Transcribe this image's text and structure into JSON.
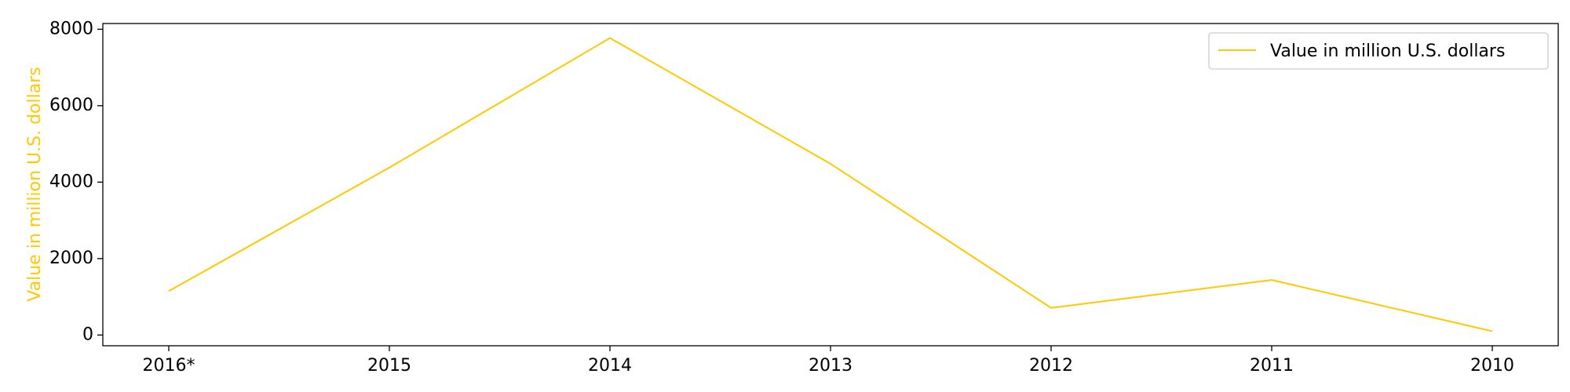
{
  "chart_data": {
    "type": "line",
    "categories": [
      "2016*",
      "2015",
      "2014",
      "2013",
      "2012",
      "2011",
      "2010"
    ],
    "series": [
      {
        "name": "Value in million U.S. dollars",
        "values": [
          1150,
          4380,
          7770,
          4480,
          710,
          1440,
          100
        ],
        "color": "#ffc800"
      }
    ],
    "ylabel": "Value in million U.S. dollars",
    "xlabel": "",
    "ylim": [
      -280,
      8150
    ],
    "yticks": [
      0,
      2000,
      4000,
      6000,
      8000
    ],
    "grid": false,
    "legend_position": "top-right",
    "axis_label_color": "#ffc800"
  }
}
